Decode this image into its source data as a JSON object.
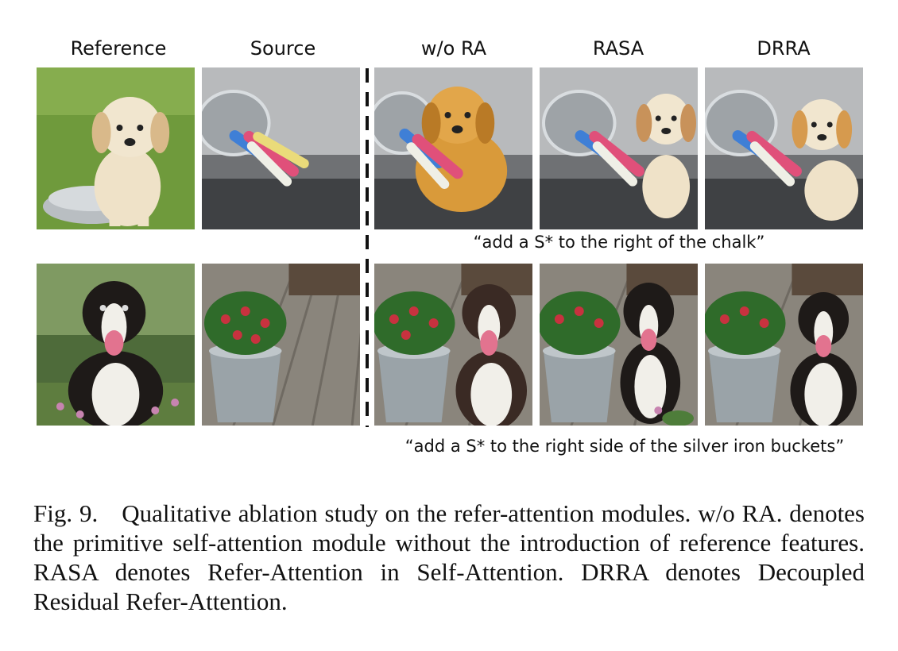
{
  "columns": {
    "reference": "Reference",
    "source": "Source",
    "wo_ra": "w/o RA",
    "rasa": "RASA",
    "drra": "DRRA"
  },
  "rows": [
    {
      "prompt": "“add a S* to the right of the chalk”"
    },
    {
      "prompt": "“add a S* to the right side of the silver iron buckets”"
    }
  ],
  "caption": {
    "label": "Fig. 9.",
    "text": "Qualitative ablation study on the refer-attention modules. w/o RA. denotes the primitive self-attention module without the introduction of reference features. RASA denotes Refer-Attention in Self-Attention. DRRA denotes Decoupled Residual Refer-Attention."
  },
  "colors": {
    "grass": "#6f9a3c",
    "puppy_cream": "#efe2c8",
    "puppy_gold": "#d99a3a",
    "chalk_blue": "#3f7fd6",
    "chalk_pink": "#e0507a",
    "chalk_yellow": "#eadb7a",
    "bucket_silver": "#9aa3a8",
    "deck_wood": "#8a857c",
    "dog_black": "#1e1a18",
    "flower_red": "#c8323f",
    "leaf_green": "#2f6b2a"
  }
}
